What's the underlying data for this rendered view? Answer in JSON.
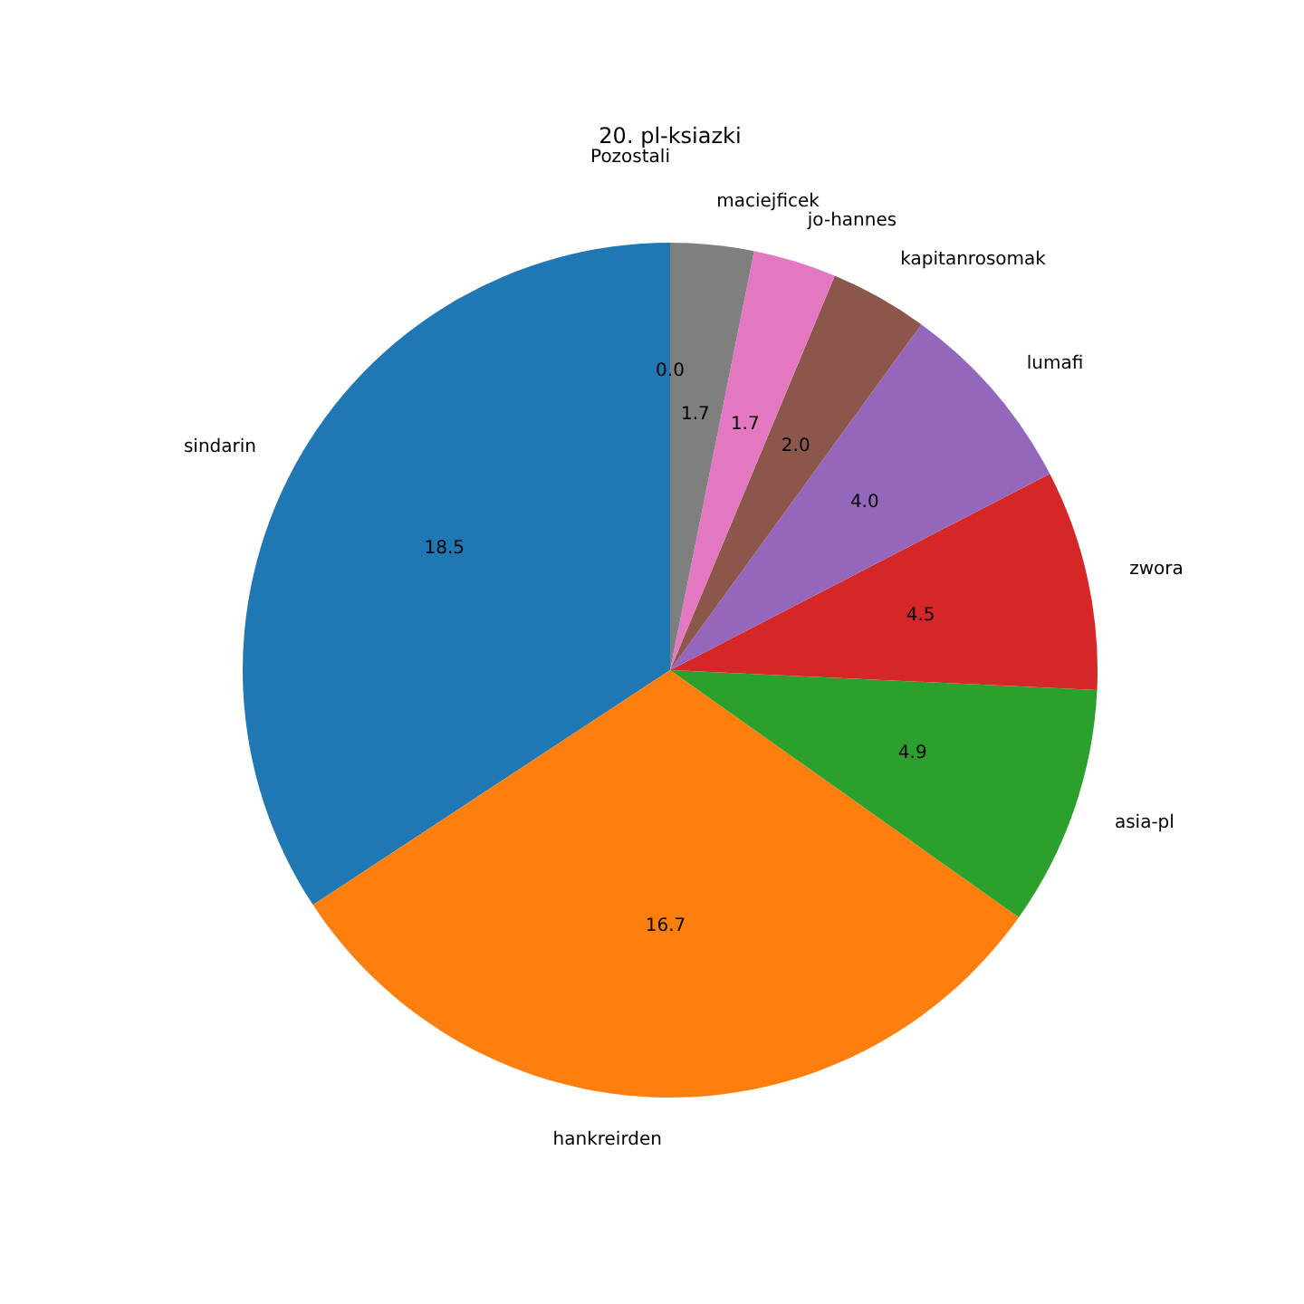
{
  "chart_data": {
    "type": "pie",
    "title": "20. pl-ksiazki",
    "categories": [
      "sindarin",
      "hankreirden",
      "asia-pl",
      "zwora",
      "lumafi",
      "kapitanrosomak",
      "jo-hannes",
      "maciejficek",
      "Pozostali"
    ],
    "values": [
      18.5,
      16.7,
      4.9,
      4.5,
      4.0,
      2.0,
      1.7,
      1.7,
      0.0
    ],
    "value_labels": [
      "18.5",
      "16.7",
      "4.9",
      "4.5",
      "4.0",
      "2.0",
      "1.7",
      "1.7",
      "0.0"
    ],
    "colors": [
      "#1f77b4",
      "#ff7f0e",
      "#2ca02c",
      "#d62728",
      "#9467bd",
      "#8c564b",
      "#e377c2",
      "#7f7f7f",
      null
    ]
  }
}
